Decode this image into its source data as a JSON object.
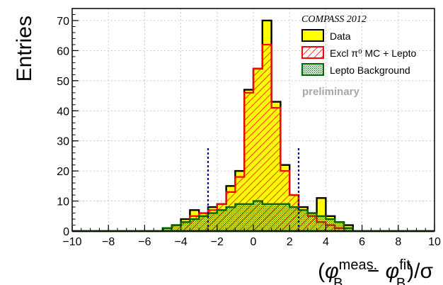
{
  "chart_data": {
    "type": "histogram",
    "experiment": "COMPASS 2012",
    "status": "preliminary",
    "ylabel": "Entries",
    "xlabel": {
      "open": "(",
      "phi": "φ",
      "sup1": "meas.",
      "sub1": "B",
      "minus": " − ",
      "phi2": "φ",
      "sup2": "fit",
      "sub2": "B",
      "close": ")/σ"
    },
    "xlim": [
      -10,
      10
    ],
    "ylim": [
      0,
      74
    ],
    "x_ticks": [
      -10,
      -8,
      -6,
      -4,
      -2,
      0,
      2,
      4,
      6,
      8,
      10
    ],
    "x_tick_labels": [
      "−10",
      "−8",
      "−6",
      "−4",
      "−2",
      "0",
      "2",
      "4",
      "6",
      "8",
      "10"
    ],
    "y_ticks": [
      0,
      10,
      20,
      30,
      40,
      50,
      60,
      70
    ],
    "y_tick_labels": [
      "0",
      "10",
      "20",
      "30",
      "40",
      "50",
      "60",
      "70"
    ],
    "grid": true,
    "bin_edges": [
      -10,
      -9.5,
      -9,
      -8.5,
      -8,
      -7.5,
      -7,
      -6.5,
      -6,
      -5.5,
      -5,
      -4.5,
      -4,
      -3.5,
      -3,
      -2.5,
      -2,
      -1.5,
      -1,
      -0.5,
      0,
      0.5,
      1,
      1.5,
      2,
      2.5,
      3,
      3.5,
      4,
      4.5,
      5,
      5.5,
      6,
      6.5,
      7,
      7.5,
      8,
      8.5,
      9,
      9.5,
      10
    ],
    "series": [
      {
        "name": "Data",
        "color": "#ffff00",
        "edge": "#000000",
        "values": [
          0,
          0,
          0,
          0,
          0,
          0,
          0,
          0,
          0,
          0,
          1,
          2,
          4,
          7,
          6,
          8,
          9,
          15,
          20,
          47,
          54,
          70,
          43,
          22,
          12,
          8,
          6,
          11,
          5,
          3,
          2,
          0,
          0,
          0,
          0,
          0,
          0,
          0,
          0,
          0
        ]
      },
      {
        "name": "Excl π⁰ MC + Lepto",
        "color": "#ff0000",
        "values": [
          0,
          0,
          0,
          0,
          0,
          0,
          0,
          0,
          0,
          0,
          1,
          2,
          3,
          5,
          6,
          7,
          9,
          13,
          18,
          46,
          54,
          62,
          41,
          20,
          12,
          7,
          5,
          3,
          2,
          1,
          1,
          0,
          0,
          0,
          0,
          0,
          0,
          0,
          0,
          0
        ]
      },
      {
        "name": "Lepto Background",
        "color": "#006600",
        "values": [
          0,
          0,
          0,
          0,
          0,
          0,
          0,
          0,
          0,
          0,
          1,
          2,
          3,
          4,
          5,
          6,
          7,
          8,
          9,
          9,
          10,
          9,
          9,
          9,
          8,
          7,
          6,
          5,
          4,
          3,
          1,
          0,
          0,
          0,
          0,
          0,
          0,
          0,
          0,
          0
        ]
      }
    ],
    "cut_lines": [
      -2.5,
      2.5
    ],
    "cut_line_top": 28,
    "cut_line_color": "#0000cc",
    "legend_position": "top-right"
  }
}
